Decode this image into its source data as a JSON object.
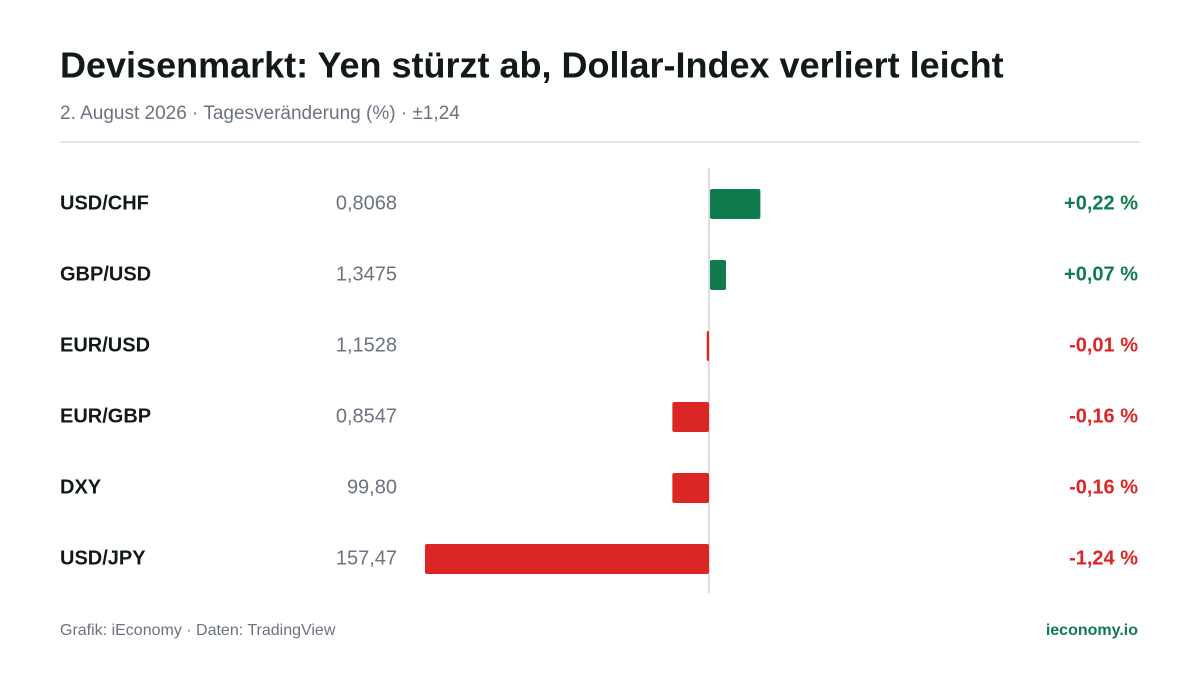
{
  "chart_data": {
    "type": "bar",
    "orientation": "horizontal",
    "title": "Devisenmarkt: Yen stürzt ab, Dollar-Index verliert leicht",
    "subtitle": "2. August 2026 · Tagesveränderung (%) · ±1,24",
    "categories": [
      "USD/CHF",
      "GBP/USD",
      "EUR/USD",
      "EUR/GBP",
      "DXY",
      "USD/JPY"
    ],
    "prices": [
      "0,8068",
      "1,3475",
      "1,1528",
      "0,8547",
      "99,80",
      "157,47"
    ],
    "values": [
      0.22,
      0.07,
      -0.01,
      -0.16,
      -0.16,
      -1.24
    ],
    "value_labels": [
      "+0,22 %",
      "+0,07 %",
      "-0,01 %",
      "-0,16 %",
      "-0,16 %",
      "-1,24 %"
    ],
    "xlim": [
      -1.24,
      1.24
    ],
    "positive_color": "#0f7b4f",
    "negative_color": "#dc2626",
    "source": "Grafik: iEconomy · Daten: TradingView",
    "brand": "ieconomy.io"
  }
}
